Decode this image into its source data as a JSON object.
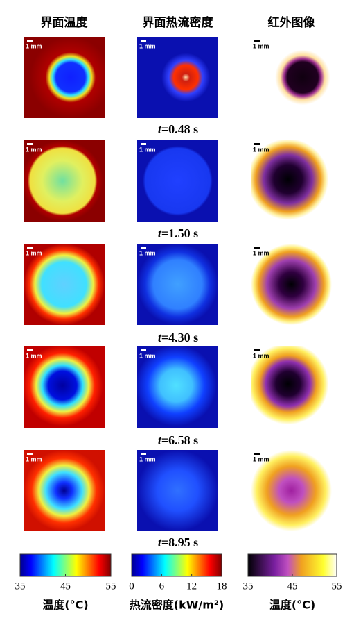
{
  "headers": [
    "界面温度",
    "界面热流密度",
    "红外图像"
  ],
  "scale_bar": "1 mm",
  "times": [
    {
      "symbol": "t",
      "text": "=0.48 s"
    },
    {
      "symbol": "t",
      "text": "=1.50 s"
    },
    {
      "symbol": "t",
      "text": "=4.30 s"
    },
    {
      "symbol": "t",
      "text": "=6.58 s"
    },
    {
      "symbol": "t",
      "text": "=8.95 s"
    }
  ],
  "colorbars": [
    {
      "label": "温度(°C)",
      "range": [
        35,
        55
      ],
      "ticks": [
        35,
        45,
        55
      ]
    },
    {
      "label": "热流密度(kW/m²)",
      "range": [
        0,
        18
      ],
      "ticks": [
        0,
        6,
        12,
        18
      ]
    },
    {
      "label": "温度(°C)",
      "range": [
        35,
        55
      ],
      "ticks": [
        35,
        45,
        55
      ]
    }
  ]
}
